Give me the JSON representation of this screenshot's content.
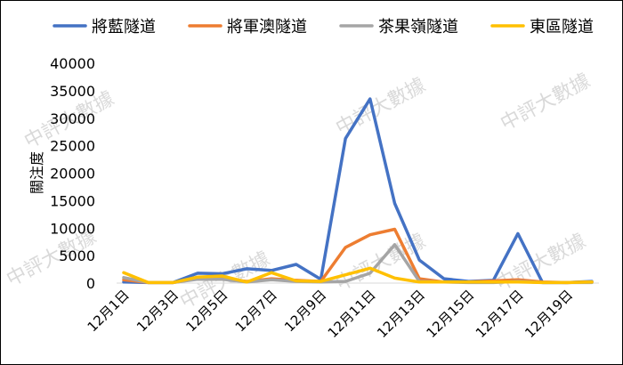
{
  "watermark": "中評大數據",
  "chart_data": {
    "type": "line",
    "ylabel": "關注度",
    "xlabel": "",
    "title": "",
    "ylim": [
      0,
      40000
    ],
    "yticks": [
      0,
      5000,
      10000,
      15000,
      20000,
      25000,
      30000,
      35000,
      40000
    ],
    "y_tick_labels": [
      "0",
      "5000",
      "10000",
      "15000",
      "20000",
      "25000",
      "30000",
      "35000",
      "40000"
    ],
    "grid": false,
    "legend_position": "top",
    "x": [
      "12月1日",
      "12月2日",
      "12月3日",
      "12月4日",
      "12月5日",
      "12月6日",
      "12月7日",
      "12月8日",
      "12月9日",
      "12月10日",
      "12月11日",
      "12月12日",
      "12月13日",
      "12月14日",
      "12月15日",
      "12月16日",
      "12月17日",
      "12月18日",
      "12月19日",
      "12月20日"
    ],
    "x_tick_labels": [
      "12月1日",
      "12月3日",
      "12月5日",
      "12月7日",
      "12月9日",
      "12月11日",
      "12月13日",
      "12月15日",
      "12月17日",
      "12月19日"
    ],
    "x_tick_every": 2,
    "series": [
      {
        "name": "將藍隧道",
        "color": "#4472C4",
        "values": [
          200,
          100,
          100,
          1800,
          1700,
          2600,
          2300,
          3400,
          700,
          26300,
          33500,
          14500,
          4200,
          800,
          300,
          500,
          9000,
          100,
          100,
          300
        ]
      },
      {
        "name": "將軍澳隧道",
        "color": "#ED7D31",
        "values": [
          600,
          100,
          100,
          800,
          800,
          300,
          800,
          500,
          300,
          6500,
          8800,
          9800,
          800,
          200,
          200,
          400,
          600,
          200,
          100,
          200
        ]
      },
      {
        "name": "茶果嶺隧道",
        "color": "#A5A5A5",
        "values": [
          1000,
          100,
          100,
          700,
          700,
          200,
          600,
          300,
          200,
          300,
          1800,
          7000,
          300,
          200,
          100,
          100,
          300,
          100,
          100,
          100
        ]
      },
      {
        "name": "東區隧道",
        "color": "#FFC000",
        "values": [
          1900,
          100,
          100,
          1100,
          1300,
          200,
          1900,
          400,
          300,
          1500,
          2700,
          900,
          200,
          200,
          200,
          200,
          200,
          100,
          100,
          200
        ]
      }
    ]
  }
}
